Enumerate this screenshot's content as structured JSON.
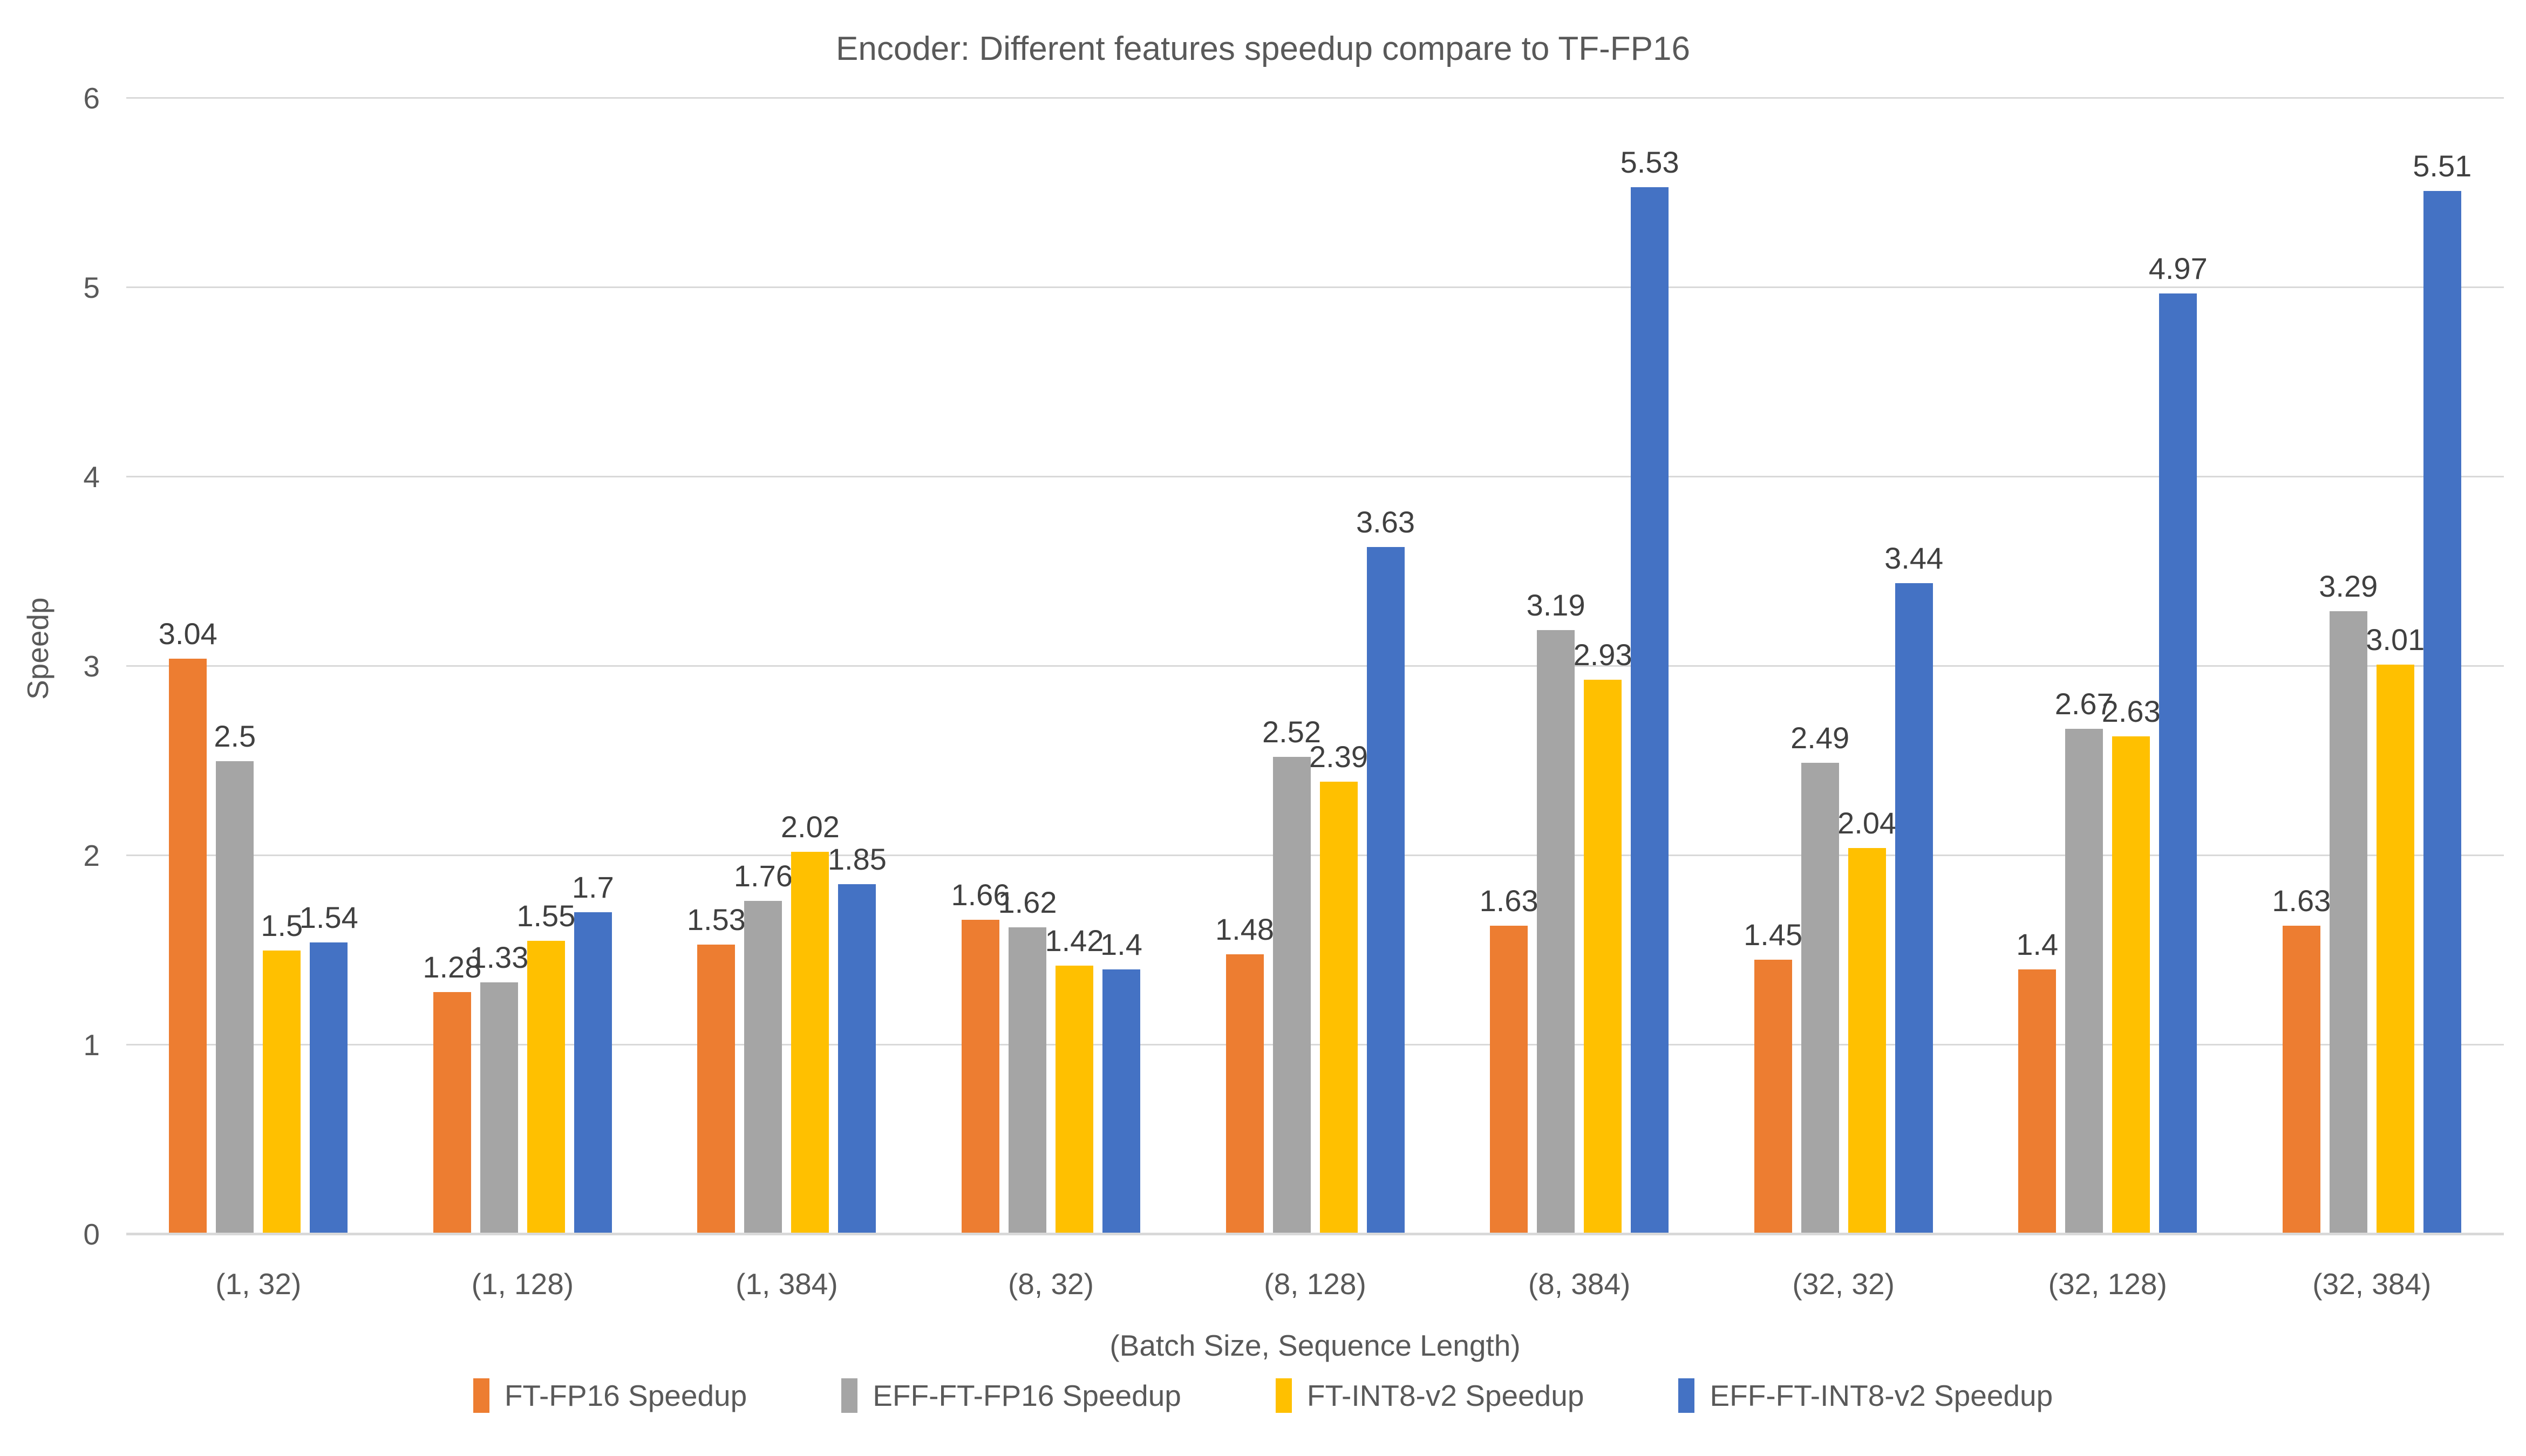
{
  "chart_data": {
    "type": "bar",
    "title": "Encoder: Different features speedup compare to TF-FP16",
    "xlabel": "(Batch Size, Sequence Length)",
    "ylabel": "Speedp",
    "ylim": [
      0,
      6
    ],
    "yticks": [
      0,
      1,
      2,
      3,
      4,
      5,
      6
    ],
    "grid": "horizontal",
    "gridline_color": "#d9d9d9",
    "legend_position": "bottom",
    "categories": [
      "(1, 32)",
      "(1, 128)",
      "(1, 384)",
      "(8, 32)",
      "(8, 128)",
      "(8, 384)",
      "(32, 32)",
      "(32, 128)",
      "(32, 384)"
    ],
    "series": [
      {
        "name": "FT-FP16 Speedup",
        "color": "#ED7D31",
        "values": [
          3.04,
          1.28,
          1.53,
          1.66,
          1.48,
          1.63,
          1.45,
          1.4,
          1.63
        ]
      },
      {
        "name": "EFF-FT-FP16 Speedup",
        "color": "#A5A5A5",
        "values": [
          2.5,
          1.33,
          1.76,
          1.62,
          2.52,
          3.19,
          2.49,
          2.67,
          3.29
        ]
      },
      {
        "name": "FT-INT8-v2 Speedup",
        "color": "#FFC000",
        "values": [
          1.5,
          1.55,
          2.02,
          1.42,
          2.39,
          2.93,
          2.04,
          2.63,
          3.01
        ]
      },
      {
        "name": "EFF-FT-INT8-v2 Speedup",
        "color": "#4472C4",
        "values": [
          1.54,
          1.7,
          1.85,
          1.4,
          3.63,
          5.53,
          3.44,
          4.97,
          5.51
        ]
      }
    ],
    "label_color": "#404040",
    "axis_text_color": "#595959"
  }
}
